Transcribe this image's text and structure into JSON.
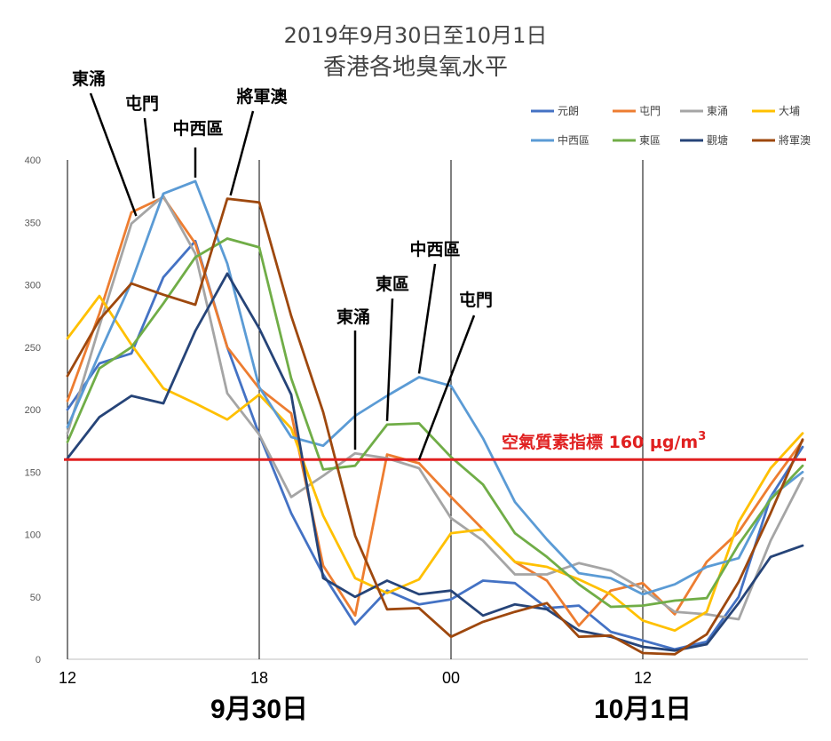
{
  "chart_data": {
    "type": "line",
    "title": "2019年9月30日至10月1日",
    "subtitle": "香港各地臭氧水平",
    "ylim": [
      0,
      400
    ],
    "yticks": [
      0,
      50,
      100,
      150,
      200,
      250,
      300,
      350,
      400
    ],
    "x_hours": 24,
    "xtick_labels": [
      {
        "hour": 0,
        "label": "12"
      },
      {
        "hour": 6,
        "label": "18"
      },
      {
        "hour": 12,
        "label": "00"
      },
      {
        "hour": 18,
        "label": "12"
      }
    ],
    "date_labels": [
      {
        "hour": 6,
        "label": "9月30日"
      },
      {
        "hour": 18,
        "label": "10月1日"
      }
    ],
    "threshold": {
      "value": 160,
      "label_main": "空氣質素指標 160 μg/m",
      "label_sup": "3",
      "color": "#e02020"
    },
    "series": [
      {
        "name": "元朗",
        "color": "#4472c4",
        "values": [
          200,
          237,
          245,
          306,
          335,
          250,
          180,
          117,
          68,
          28,
          55,
          44,
          48,
          63,
          61,
          41,
          43,
          22,
          15,
          8,
          14,
          50,
          130,
          170
        ]
      },
      {
        "name": "屯門",
        "color": "#ed7d31",
        "values": [
          207,
          277,
          358,
          370,
          333,
          250,
          217,
          197,
          75,
          35,
          164,
          157,
          130,
          104,
          78,
          63,
          27,
          55,
          61,
          36,
          78,
          102,
          140,
          175
        ]
      },
      {
        "name": "東涌",
        "color": "#a5a5a5",
        "values": [
          181,
          267,
          349,
          371,
          325,
          213,
          180,
          130,
          147,
          165,
          161,
          153,
          113,
          95,
          68,
          68,
          77,
          71,
          56,
          38,
          36,
          32,
          95,
          145
        ]
      },
      {
        "name": "大埔",
        "color": "#ffc000",
        "values": [
          257,
          291,
          252,
          217,
          205,
          192,
          212,
          185,
          115,
          65,
          53,
          64,
          101,
          104,
          78,
          74,
          64,
          52,
          31,
          23,
          38,
          110,
          153,
          181
        ]
      },
      {
        "name": "中西區",
        "color": "#5b9bd5",
        "values": [
          186,
          245,
          302,
          373,
          383,
          317,
          218,
          178,
          171,
          195,
          211,
          226,
          219,
          177,
          126,
          96,
          69,
          65,
          52,
          60,
          74,
          81,
          130,
          150
        ]
      },
      {
        "name": "東區",
        "color": "#70ad47",
        "values": [
          174,
          233,
          250,
          285,
          322,
          337,
          330,
          225,
          152,
          155,
          188,
          189,
          162,
          140,
          101,
          82,
          60,
          42,
          43,
          47,
          49,
          92,
          128,
          155
        ]
      },
      {
        "name": "觀塘",
        "color": "#264478",
        "values": [
          161,
          194,
          211,
          205,
          263,
          309,
          265,
          212,
          65,
          50,
          63,
          52,
          55,
          35,
          44,
          40,
          23,
          18,
          10,
          7,
          12,
          45,
          82,
          91
        ]
      },
      {
        "name": "將軍澳",
        "color": "#9e480e",
        "values": [
          227,
          272,
          301,
          292,
          284,
          369,
          366,
          275,
          198,
          99,
          40,
          41,
          18,
          30,
          38,
          45,
          18,
          19,
          5,
          4,
          20,
          62,
          117,
          176
        ]
      }
    ],
    "annotations": [
      {
        "label": "東涌",
        "target_series": "東涌",
        "target_hour": 2.15
      },
      {
        "label": "屯門",
        "target_series": "屯門",
        "target_hour": 2.7
      },
      {
        "label": "中西區",
        "target_series": "中西區",
        "target_hour": 4.0
      },
      {
        "label": "將軍澳",
        "target_series": "將軍澳",
        "target_hour": 5.1
      },
      {
        "label": "東涌",
        "target_series": "東涌",
        "target_hour": 9.0
      },
      {
        "label": "東區",
        "target_series": "東區",
        "target_hour": 10.0
      },
      {
        "label": "中西區",
        "target_series": "中西區",
        "target_hour": 11.0
      },
      {
        "label": "屯門",
        "target_series": "屯門",
        "target_hour": 11.0
      }
    ]
  }
}
